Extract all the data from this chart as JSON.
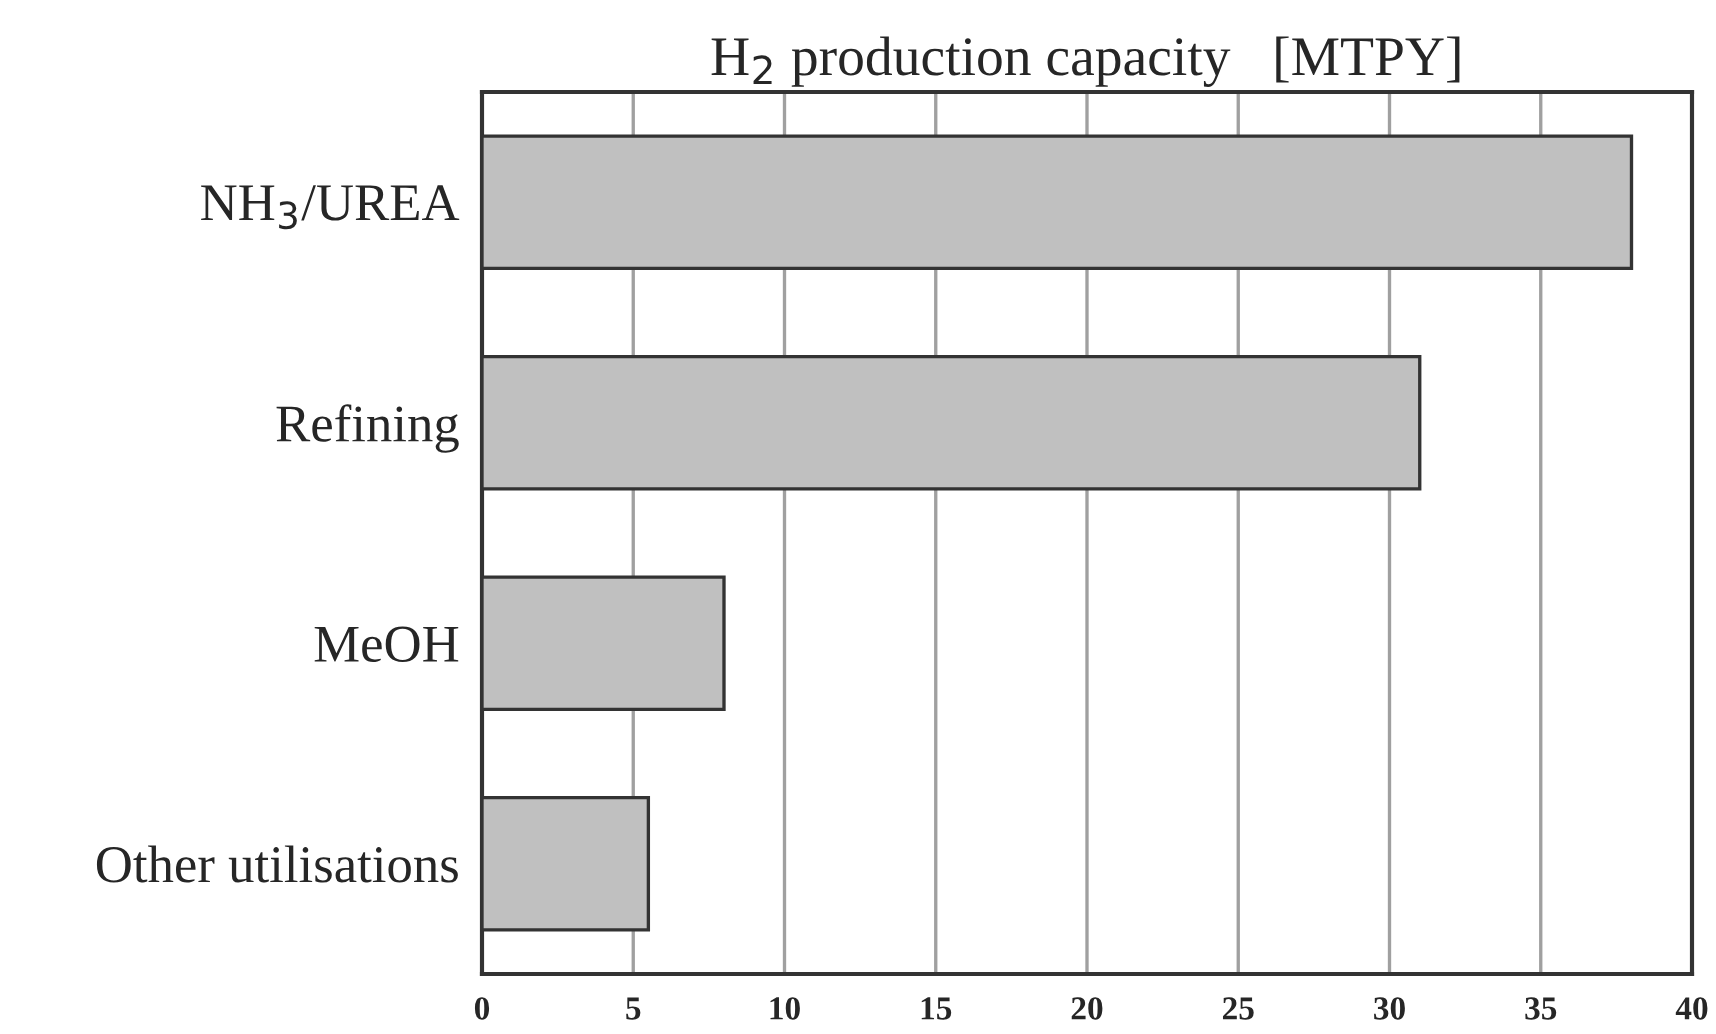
{
  "chart_data": {
    "type": "bar",
    "orientation": "horizontal",
    "title": "H$_{2}$ production capacity   [MTPY]",
    "categories": [
      "NH$_{3}$/UREA",
      "Refining",
      "MeOH",
      "Other utilisations"
    ],
    "values": [
      38,
      31,
      8,
      5.5
    ],
    "color": "#c0c0c0",
    "xlim": [
      0,
      40
    ],
    "xticks": [
      0,
      5,
      10,
      15,
      20,
      25,
      30,
      35,
      40
    ],
    "grid": "x"
  }
}
